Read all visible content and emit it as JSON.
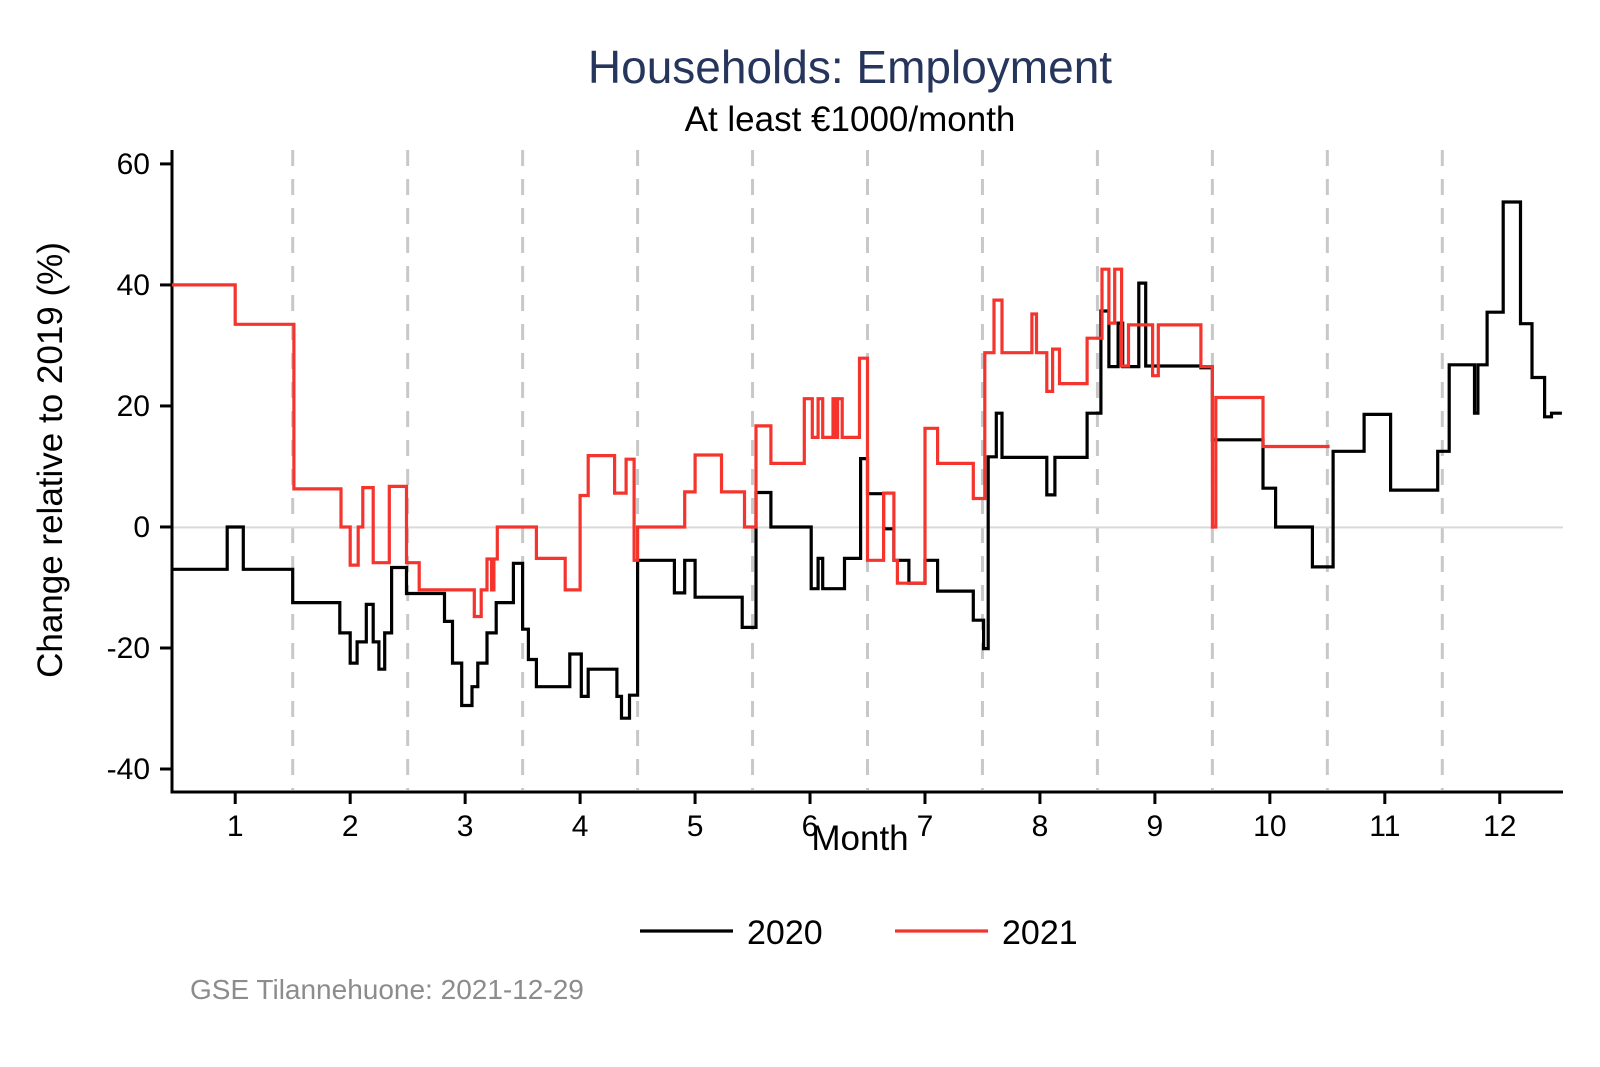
{
  "chart_data": {
    "type": "line",
    "step": true,
    "title": "Households: Employment",
    "subtitle": "At least €1000/month",
    "xlabel": "Month",
    "ylabel": "Change relative to 2019 (%)",
    "source": "GSE Tilannehuone: 2021-12-29",
    "grid": "vertical-dashed-at-month-boundaries",
    "zero_line": true,
    "legend_position": "bottom-center",
    "xlim": [
      0.45,
      12.55
    ],
    "ylim": [
      -43.8,
      62.3
    ],
    "x_ticks": [
      1,
      2,
      3,
      4,
      5,
      6,
      7,
      8,
      9,
      10,
      11,
      12
    ],
    "y_ticks": [
      60,
      40,
      20,
      0,
      -20,
      -40
    ],
    "colors": {
      "title": "#26355c",
      "grid_dash": "#c8c8c8",
      "zero_line": "#d9d9d9",
      "axis": "#000000",
      "source": "#8c8c8c"
    },
    "series": [
      {
        "name": "2020",
        "color": "#000000",
        "end_x": 12.54,
        "points": [
          [
            0.45,
            -7
          ],
          [
            0.93,
            0
          ],
          [
            1.07,
            -7
          ],
          [
            1.5,
            -12.5
          ],
          [
            1.91,
            -17.5
          ],
          [
            2.0,
            -22.5
          ],
          [
            2.06,
            -19
          ],
          [
            2.14,
            -12.8
          ],
          [
            2.2,
            -19
          ],
          [
            2.25,
            -23.5
          ],
          [
            2.3,
            -17.5
          ],
          [
            2.36,
            -6.7
          ],
          [
            2.49,
            -11
          ],
          [
            2.82,
            -15.6
          ],
          [
            2.89,
            -22.5
          ],
          [
            2.97,
            -29.5
          ],
          [
            3.06,
            -26.4
          ],
          [
            3.11,
            -22.5
          ],
          [
            3.19,
            -17.5
          ],
          [
            3.27,
            -12.5
          ],
          [
            3.42,
            -6
          ],
          [
            3.5,
            -16.9
          ],
          [
            3.55,
            -21.9
          ],
          [
            3.62,
            -26.4
          ],
          [
            3.91,
            -21
          ],
          [
            4.01,
            -28
          ],
          [
            4.07,
            -23.5
          ],
          [
            4.32,
            -28
          ],
          [
            4.36,
            -31.6
          ],
          [
            4.43,
            -27.8
          ],
          [
            4.5,
            -5.5
          ],
          [
            4.82,
            -10.9
          ],
          [
            4.91,
            -5.5
          ],
          [
            5.0,
            -11.6
          ],
          [
            5.41,
            -16.6
          ],
          [
            5.53,
            5.7
          ],
          [
            5.66,
            0
          ],
          [
            6.01,
            -10.2
          ],
          [
            6.07,
            -5.2
          ],
          [
            6.11,
            -10.2
          ],
          [
            6.3,
            -5.2
          ],
          [
            6.44,
            11.3
          ],
          [
            6.5,
            5.5
          ],
          [
            6.64,
            -0.3
          ],
          [
            6.73,
            -5.5
          ],
          [
            6.86,
            -9.3
          ],
          [
            7.0,
            -5.5
          ],
          [
            7.11,
            -10.6
          ],
          [
            7.42,
            -15.4
          ],
          [
            7.51,
            -20.1
          ],
          [
            7.55,
            11.6
          ],
          [
            7.62,
            18.8
          ],
          [
            7.67,
            11.5
          ],
          [
            8.06,
            5.3
          ],
          [
            8.13,
            11.5
          ],
          [
            8.41,
            18.8
          ],
          [
            8.53,
            35.7
          ],
          [
            8.6,
            26.5
          ],
          [
            8.68,
            33.7
          ],
          [
            8.72,
            26.5
          ],
          [
            8.86,
            40.3
          ],
          [
            8.92,
            26.6
          ],
          [
            9.4,
            26.3
          ],
          [
            9.5,
            14.4
          ],
          [
            9.94,
            6.4
          ],
          [
            10.05,
            0
          ],
          [
            10.37,
            -6.6
          ],
          [
            10.55,
            12.5
          ],
          [
            10.82,
            18.6
          ],
          [
            11.05,
            6.1
          ],
          [
            11.46,
            12.5
          ],
          [
            11.56,
            26.8
          ],
          [
            11.78,
            18.8
          ],
          [
            11.81,
            26.8
          ],
          [
            11.89,
            35.5
          ],
          [
            12.03,
            53.7
          ],
          [
            12.18,
            33.6
          ],
          [
            12.28,
            24.7
          ],
          [
            12.39,
            18.2
          ],
          [
            12.45,
            18.8
          ]
        ]
      },
      {
        "name": "2021",
        "color": "#f5342e",
        "end_x": 10.52,
        "points": [
          [
            0.45,
            40
          ],
          [
            1.0,
            33.5
          ],
          [
            1.51,
            6.3
          ],
          [
            1.92,
            0
          ],
          [
            2.0,
            -6.3
          ],
          [
            2.07,
            0
          ],
          [
            2.11,
            6.5
          ],
          [
            2.2,
            -5.9
          ],
          [
            2.34,
            6.7
          ],
          [
            2.49,
            -5.9
          ],
          [
            2.6,
            -10.4
          ],
          [
            3.08,
            -14.8
          ],
          [
            3.14,
            -10.4
          ],
          [
            3.19,
            -5.3
          ],
          [
            3.23,
            -10.4
          ],
          [
            3.25,
            -5.3
          ],
          [
            3.28,
            0
          ],
          [
            3.62,
            -5.2
          ],
          [
            3.87,
            -10.4
          ],
          [
            4.0,
            5.2
          ],
          [
            4.07,
            11.8
          ],
          [
            4.3,
            5.6
          ],
          [
            4.4,
            11.2
          ],
          [
            4.47,
            -5.5
          ],
          [
            4.5,
            0
          ],
          [
            4.91,
            5.8
          ],
          [
            5.0,
            11.9
          ],
          [
            5.23,
            5.8
          ],
          [
            5.43,
            0
          ],
          [
            5.53,
            16.7
          ],
          [
            5.66,
            10.5
          ],
          [
            5.95,
            21.2
          ],
          [
            6.02,
            14.8
          ],
          [
            6.07,
            21.2
          ],
          [
            6.11,
            14.8
          ],
          [
            6.2,
            21.2
          ],
          [
            6.22,
            14.8
          ],
          [
            6.24,
            21.2
          ],
          [
            6.28,
            14.8
          ],
          [
            6.43,
            27.9
          ],
          [
            6.5,
            -5.5
          ],
          [
            6.64,
            5.6
          ],
          [
            6.73,
            -5.5
          ],
          [
            6.76,
            -9.3
          ],
          [
            7.0,
            16.3
          ],
          [
            7.11,
            10.5
          ],
          [
            7.42,
            4.7
          ],
          [
            7.52,
            28.8
          ],
          [
            7.6,
            37.5
          ],
          [
            7.67,
            28.8
          ],
          [
            7.93,
            35.2
          ],
          [
            7.97,
            28.8
          ],
          [
            8.06,
            22.4
          ],
          [
            8.11,
            29.4
          ],
          [
            8.17,
            23.7
          ],
          [
            8.41,
            31.2
          ],
          [
            8.54,
            42.6
          ],
          [
            8.6,
            33.7
          ],
          [
            8.65,
            42.6
          ],
          [
            8.71,
            26.6
          ],
          [
            8.77,
            33.4
          ],
          [
            8.98,
            25
          ],
          [
            9.03,
            33.4
          ],
          [
            9.4,
            26.5
          ],
          [
            9.5,
            0
          ],
          [
            9.53,
            21.4
          ],
          [
            9.94,
            13.3
          ]
        ]
      }
    ]
  }
}
